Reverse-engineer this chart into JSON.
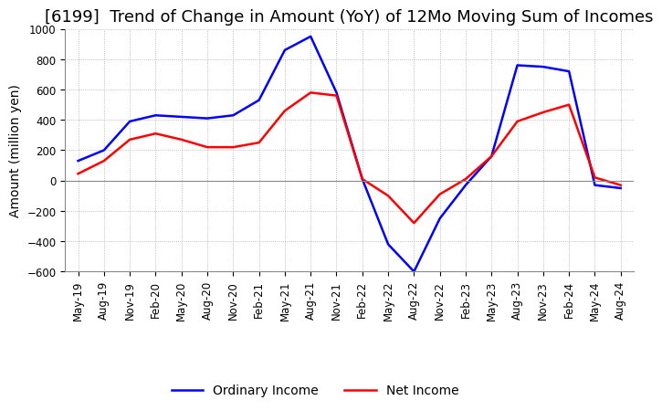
{
  "title": "[6199]  Trend of Change in Amount (YoY) of 12Mo Moving Sum of Incomes",
  "ylabel": "Amount (million yen)",
  "ylim": [
    -600,
    1000
  ],
  "yticks": [
    -600,
    -400,
    -200,
    0,
    200,
    400,
    600,
    800,
    1000
  ],
  "x_labels": [
    "May-19",
    "Aug-19",
    "Nov-19",
    "Feb-20",
    "May-20",
    "Aug-20",
    "Nov-20",
    "Feb-21",
    "May-21",
    "Aug-21",
    "Nov-21",
    "Feb-22",
    "May-22",
    "Aug-22",
    "Nov-22",
    "Feb-23",
    "May-23",
    "Aug-23",
    "Nov-23",
    "Feb-24",
    "May-24",
    "Aug-24"
  ],
  "ordinary_income": [
    130,
    200,
    390,
    430,
    420,
    410,
    430,
    530,
    860,
    950,
    580,
    10,
    -420,
    -600,
    -250,
    -30,
    160,
    760,
    750,
    720,
    -30,
    -50
  ],
  "net_income": [
    45,
    130,
    270,
    310,
    270,
    220,
    220,
    250,
    460,
    580,
    560,
    10,
    -100,
    -280,
    -90,
    10,
    160,
    390,
    450,
    500,
    20,
    -30
  ],
  "ordinary_color": "#0000ff",
  "net_color": "#ff0000",
  "background_color": "#ffffff",
  "grid_color": "#aaaaaa",
  "zeroline_color": "#888888",
  "title_fontsize": 13,
  "axis_fontsize": 10,
  "tick_fontsize": 8.5,
  "legend_fontsize": 10
}
